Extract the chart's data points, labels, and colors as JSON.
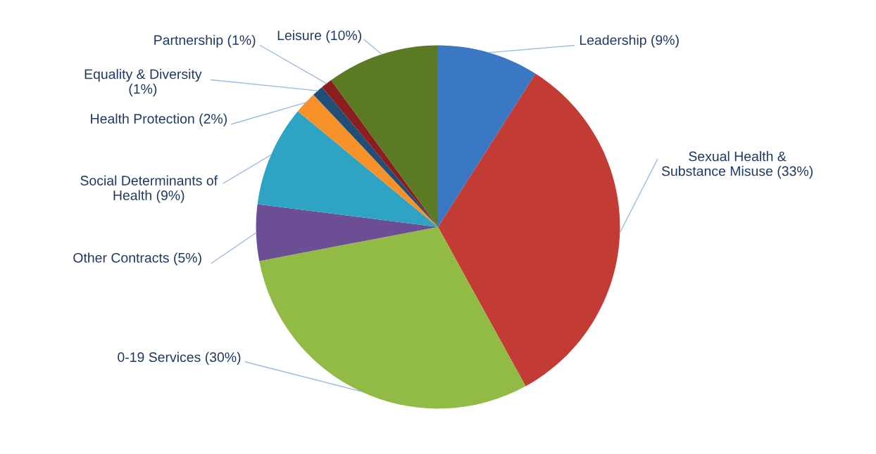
{
  "chart_data": {
    "type": "pie",
    "categories": [
      "Leadership (9%)",
      "Sexual Health &\nSubstance Misuse (33%)",
      "0-19 Services (30%)",
      "Other Contracts (5%)",
      "Social Determinants of\nHealth (9%)",
      "Health Protection (2%)",
      "Equality & Diversity\n(1%)",
      "Partnership (1%)",
      "Leisure (10%)"
    ],
    "values": [
      9,
      33,
      30,
      5,
      9,
      2,
      1,
      1,
      10
    ],
    "colors": [
      "#3a78c4",
      "#c23b34",
      "#92bb45",
      "#6c4e94",
      "#2ea3c4",
      "#f7922a",
      "#1f4e79",
      "#8b1e1e",
      "#5a7a24"
    ],
    "legend": false
  }
}
